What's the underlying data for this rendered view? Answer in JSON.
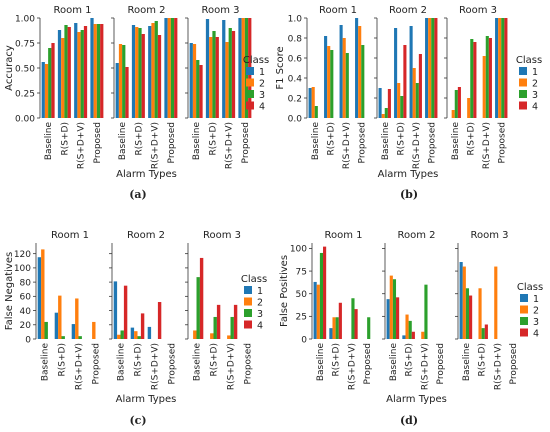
{
  "colors": [
    "#1f77b4",
    "#ff7f0e",
    "#2ca02c",
    "#d62728"
  ],
  "legend_title": "Class",
  "legend_labels": [
    "1",
    "2",
    "3",
    "4"
  ],
  "chart_data": [
    {
      "type": "bar",
      "panel_label": "(a)",
      "ylabel": "Accuracy",
      "xlabel": "Alarm Types",
      "categories": [
        "Baseline",
        "R(S+D)",
        "R(S+D+V)",
        "Proposed"
      ],
      "ylim": [
        0,
        1.0
      ],
      "yticks": [
        "0.00",
        "0.25",
        "0.50",
        "0.75",
        "1.00"
      ],
      "yticks_values": [
        0,
        0.25,
        0.5,
        0.75,
        1.0
      ],
      "subplots": [
        {
          "title": "Room 1",
          "series": [
            {
              "name": "1",
              "values": [
                0.56,
                0.88,
                0.95,
                1.0
              ]
            },
            {
              "name": "2",
              "values": [
                0.54,
                0.8,
                0.86,
                0.94
              ]
            },
            {
              "name": "3",
              "values": [
                0.7,
                0.93,
                0.88,
                0.94
              ]
            },
            {
              "name": "4",
              "values": [
                0.75,
                0.91,
                0.92,
                0.94
              ]
            }
          ]
        },
        {
          "title": "Room 2",
          "series": [
            {
              "name": "1",
              "values": [
                0.55,
                0.93,
                0.92,
                1.0
              ]
            },
            {
              "name": "2",
              "values": [
                0.74,
                0.91,
                0.95,
                1.0
              ]
            },
            {
              "name": "3",
              "values": [
                0.73,
                0.9,
                0.97,
                1.0
              ]
            },
            {
              "name": "4",
              "values": [
                0.51,
                0.84,
                0.83,
                1.0
              ]
            }
          ]
        },
        {
          "title": "Room 3",
          "series": [
            {
              "name": "1",
              "values": [
                0.75,
                0.99,
                0.98,
                1.0
              ]
            },
            {
              "name": "2",
              "values": [
                0.74,
                0.81,
                0.76,
                1.0
              ]
            },
            {
              "name": "3",
              "values": [
                0.58,
                0.87,
                0.9,
                1.0
              ]
            },
            {
              "name": "4",
              "values": [
                0.53,
                0.81,
                0.87,
                1.0
              ]
            }
          ]
        }
      ]
    },
    {
      "type": "bar",
      "panel_label": "(b)",
      "ylabel": "F1 Score",
      "xlabel": "Alarm Types",
      "categories": [
        "Baseline",
        "R(S+D)",
        "R(S+D+V)",
        "Proposed"
      ],
      "ylim": [
        0,
        1.0
      ],
      "yticks": [
        "0.0",
        "0.2",
        "0.4",
        "0.6",
        "0.8",
        "1.0"
      ],
      "yticks_values": [
        0,
        0.2,
        0.4,
        0.6,
        0.8,
        1.0
      ],
      "subplots": [
        {
          "title": "Room 1",
          "series": [
            {
              "name": "1",
              "values": [
                0.3,
                0.82,
                0.93,
                1.0
              ]
            },
            {
              "name": "2",
              "values": [
                0.31,
                0.72,
                0.8,
                0.92
              ]
            },
            {
              "name": "3",
              "values": [
                0.12,
                0.68,
                0.65,
                0.73
              ]
            },
            {
              "name": "4",
              "values": [
                0.0,
                0.0,
                0.0,
                0.0
              ]
            }
          ]
        },
        {
          "title": "Room 2",
          "series": [
            {
              "name": "1",
              "values": [
                0.3,
                0.9,
                0.92,
                1.0
              ]
            },
            {
              "name": "2",
              "values": [
                0.04,
                0.35,
                0.5,
                1.0
              ]
            },
            {
              "name": "3",
              "values": [
                0.1,
                0.22,
                0.35,
                1.0
              ]
            },
            {
              "name": "4",
              "values": [
                0.29,
                0.73,
                0.64,
                1.0
              ]
            }
          ]
        },
        {
          "title": "Room 3",
          "series": [
            {
              "name": "1",
              "values": [
                0.0,
                0.0,
                0.0,
                1.0
              ]
            },
            {
              "name": "2",
              "values": [
                0.08,
                0.2,
                0.62,
                1.0
              ]
            },
            {
              "name": "3",
              "values": [
                0.28,
                0.79,
                0.82,
                1.0
              ]
            },
            {
              "name": "4",
              "values": [
                0.31,
                0.76,
                0.8,
                1.0
              ]
            }
          ]
        }
      ]
    },
    {
      "type": "bar",
      "panel_label": "(c)",
      "ylabel": "False Negatives",
      "xlabel": "Alarm Types",
      "categories": [
        "Baseline",
        "R(S+D)",
        "R(S+D+V)",
        "Proposed"
      ],
      "ylim": [
        0,
        135
      ],
      "yticks": [
        "0",
        "20",
        "40",
        "60",
        "80",
        "100",
        "120"
      ],
      "yticks_values": [
        0,
        20,
        40,
        60,
        80,
        100,
        120
      ],
      "subplots": [
        {
          "title": "Room 1",
          "series": [
            {
              "name": "1",
              "values": [
                115,
                37,
                21,
                0
              ]
            },
            {
              "name": "2",
              "values": [
                126,
                61,
                57,
                24
              ]
            },
            {
              "name": "3",
              "values": [
                24,
                4,
                4,
                0
              ]
            },
            {
              "name": "4",
              "values": [
                0,
                0,
                0,
                0
              ]
            }
          ]
        },
        {
          "title": "Room 2",
          "series": [
            {
              "name": "1",
              "values": [
                81,
                16,
                17,
                0
              ]
            },
            {
              "name": "2",
              "values": [
                6,
                11,
                0,
                0
              ]
            },
            {
              "name": "3",
              "values": [
                12,
                4,
                0,
                0
              ]
            },
            {
              "name": "4",
              "values": [
                75,
                36,
                52,
                0
              ]
            }
          ]
        },
        {
          "title": "Room 3",
          "series": [
            {
              "name": "1",
              "values": [
                0,
                0,
                0,
                0
              ]
            },
            {
              "name": "2",
              "values": [
                12,
                8,
                5,
                0
              ]
            },
            {
              "name": "3",
              "values": [
                87,
                31,
                31,
                0
              ]
            },
            {
              "name": "4",
              "values": [
                114,
                48,
                48,
                0
              ]
            }
          ]
        }
      ]
    },
    {
      "type": "bar",
      "panel_label": "(d)",
      "ylabel": "False Positives",
      "xlabel": "Alarm Types",
      "categories": [
        "Baseline",
        "R(S+D)",
        "R(S+D+V)",
        "Proposed"
      ],
      "ylim": [
        0,
        106
      ],
      "yticks": [
        "0",
        "25",
        "50",
        "75",
        "100"
      ],
      "yticks_values": [
        0,
        25,
        50,
        75,
        100
      ],
      "subplots": [
        {
          "title": "Room 1",
          "series": [
            {
              "name": "1",
              "values": [
                63,
                12,
                0,
                0
              ]
            },
            {
              "name": "2",
              "values": [
                60,
                24,
                0,
                0
              ]
            },
            {
              "name": "3",
              "values": [
                95,
                24,
                45,
                24
              ]
            },
            {
              "name": "4",
              "values": [
                102,
                40,
                33,
                0
              ]
            }
          ]
        },
        {
          "title": "Room 2",
          "series": [
            {
              "name": "1",
              "values": [
                44,
                4,
                0,
                0
              ]
            },
            {
              "name": "2",
              "values": [
                70,
                27,
                8,
                0
              ]
            },
            {
              "name": "3",
              "values": [
                66,
                20,
                60,
                0
              ]
            },
            {
              "name": "4",
              "values": [
                46,
                8,
                0,
                0
              ]
            }
          ]
        },
        {
          "title": "Room 3",
          "series": [
            {
              "name": "1",
              "values": [
                85,
                0,
                0,
                0
              ]
            },
            {
              "name": "2",
              "values": [
                80,
                56,
                80,
                0
              ]
            },
            {
              "name": "3",
              "values": [
                56,
                12,
                0,
                0
              ]
            },
            {
              "name": "4",
              "values": [
                48,
                16,
                0,
                0
              ]
            }
          ]
        }
      ]
    }
  ]
}
